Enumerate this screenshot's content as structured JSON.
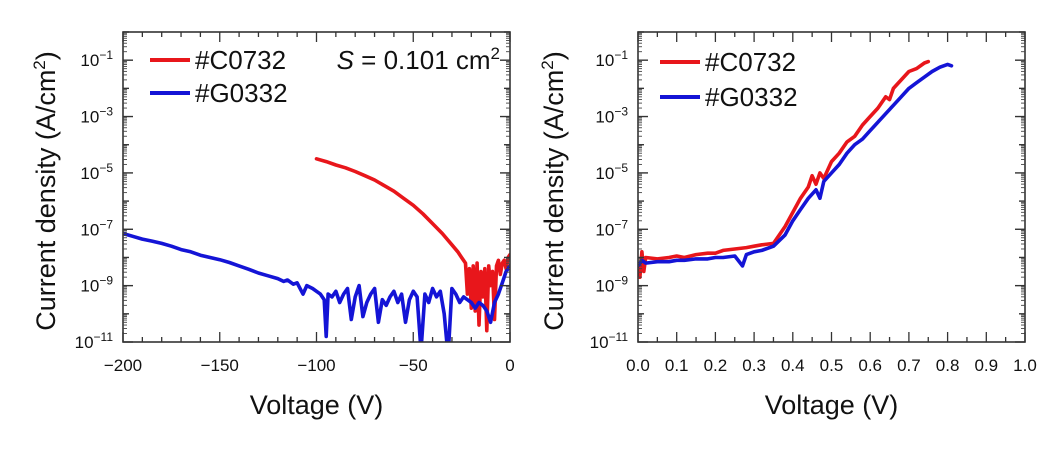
{
  "chart_data": [
    {
      "type": "line",
      "panel": "left",
      "title": "",
      "xlabel": "Voltage (V)",
      "ylabel": "Current density (A/cm2)",
      "yscale": "log",
      "xlim": [
        -200,
        0
      ],
      "ylim_exp": [
        -11,
        0
      ],
      "x_ticks": [
        -200,
        -150,
        -100,
        -50,
        0
      ],
      "x_tick_labels": [
        "−200",
        "−150",
        "−100",
        "−50",
        "0"
      ],
      "y_tick_exps": [
        -1,
        -3,
        -5,
        -7,
        -9,
        -11
      ],
      "annotation": {
        "italic": "S",
        "text": " = 0.101 cm",
        "sup": "2"
      },
      "legend_position": "top-left",
      "series": [
        {
          "name": "#C0732",
          "color": "#e8161b",
          "x": [
            -100,
            -95,
            -90,
            -85,
            -80,
            -75,
            -70,
            -65,
            -60,
            -55,
            -50,
            -45,
            -40,
            -35,
            -30,
            -27,
            -25,
            -23,
            -22,
            -21,
            -20,
            -19,
            -18,
            -17,
            -16,
            -15,
            -14,
            -13,
            -12,
            -11,
            -10,
            -9,
            -8,
            -7,
            -6,
            -5,
            -4,
            -3,
            -2,
            -1,
            0
          ],
          "log10_y": [
            -4.5,
            -4.6,
            -4.72,
            -4.82,
            -4.95,
            -5.1,
            -5.25,
            -5.45,
            -5.65,
            -5.9,
            -6.15,
            -6.45,
            -6.8,
            -7.15,
            -7.55,
            -7.8,
            -8.0,
            -8.2,
            -9.3,
            -8.4,
            -9.8,
            -8.3,
            -9.9,
            -8.2,
            -10.4,
            -8.5,
            -9.4,
            -8.4,
            -10.6,
            -8.3,
            -9.0,
            -8.5,
            -10.2,
            -8.3,
            -8.1,
            -8.6,
            -8.2,
            -8.1,
            -8.4,
            -8.0,
            -7.9
          ]
        },
        {
          "name": "#G0332",
          "color": "#1414d6",
          "x": [
            -200,
            -195,
            -190,
            -185,
            -180,
            -175,
            -170,
            -165,
            -160,
            -155,
            -150,
            -145,
            -140,
            -135,
            -130,
            -125,
            -120,
            -117,
            -115,
            -112,
            -110,
            -107,
            -105,
            -102,
            -100,
            -98,
            -96,
            -95,
            -94,
            -92,
            -90,
            -88,
            -86,
            -84,
            -82,
            -80,
            -78,
            -76,
            -74,
            -72,
            -70,
            -68,
            -66,
            -64,
            -62,
            -60,
            -58,
            -56,
            -54,
            -52,
            -50,
            -48,
            -46,
            -44,
            -42,
            -40,
            -38,
            -36,
            -34,
            -32,
            -30,
            -28,
            -26,
            -24,
            -22,
            -20,
            -18,
            -16,
            -14,
            -12,
            -10,
            -8,
            -6,
            -4,
            -2,
            0
          ],
          "log10_y": [
            -7.15,
            -7.25,
            -7.35,
            -7.42,
            -7.5,
            -7.6,
            -7.72,
            -7.8,
            -7.92,
            -8.0,
            -8.08,
            -8.18,
            -8.3,
            -8.42,
            -8.55,
            -8.65,
            -8.75,
            -8.85,
            -8.8,
            -8.95,
            -8.9,
            -9.3,
            -9.0,
            -9.1,
            -9.2,
            -9.3,
            -9.5,
            -10.8,
            -9.3,
            -9.4,
            -9.2,
            -9.6,
            -9.3,
            -9.1,
            -10.2,
            -9.4,
            -9.0,
            -10.1,
            -9.6,
            -9.3,
            -9.1,
            -10.3,
            -9.5,
            -9.7,
            -9.4,
            -9.2,
            -9.6,
            -9.3,
            -10.3,
            -9.5,
            -9.2,
            -9.4,
            -11.3,
            -9.3,
            -9.6,
            -9.1,
            -9.4,
            -9.2,
            -10.0,
            -11.5,
            -9.1,
            -9.3,
            -9.6,
            -9.4,
            -9.5,
            -9.6,
            -9.8,
            -9.6,
            -9.7,
            -9.9,
            -10.3,
            -9.6,
            -9.3,
            -8.9,
            -8.5,
            -8.3
          ]
        }
      ]
    },
    {
      "type": "line",
      "panel": "right",
      "title": "",
      "xlabel": "Voltage (V)",
      "ylabel": "Current density (A/cm2)",
      "yscale": "log",
      "xlim": [
        0.0,
        1.0
      ],
      "ylim_exp": [
        -11,
        0
      ],
      "x_ticks": [
        0.0,
        0.1,
        0.2,
        0.3,
        0.4,
        0.5,
        0.6,
        0.7,
        0.8,
        0.9,
        1.0
      ],
      "x_tick_labels": [
        "0.0",
        "0.1",
        "0.2",
        "0.3",
        "0.4",
        "0.5",
        "0.6",
        "0.7",
        "0.8",
        "0.9",
        "1.0"
      ],
      "y_tick_exps": [
        -1,
        -3,
        -5,
        -7,
        -9,
        -11
      ],
      "legend_position": "top-left",
      "series": [
        {
          "name": "#C0732",
          "color": "#e8161b",
          "x": [
            0.0,
            0.005,
            0.01,
            0.015,
            0.02,
            0.05,
            0.08,
            0.1,
            0.12,
            0.15,
            0.18,
            0.2,
            0.22,
            0.25,
            0.28,
            0.3,
            0.32,
            0.35,
            0.38,
            0.4,
            0.42,
            0.44,
            0.45,
            0.46,
            0.47,
            0.48,
            0.5,
            0.52,
            0.54,
            0.56,
            0.58,
            0.6,
            0.62,
            0.64,
            0.65,
            0.66,
            0.68,
            0.7,
            0.72,
            0.74,
            0.75
          ],
          "log10_y": [
            -8.2,
            -8.7,
            -7.8,
            -8.5,
            -8.0,
            -8.05,
            -8.0,
            -7.95,
            -8.0,
            -7.9,
            -7.85,
            -7.85,
            -7.75,
            -7.7,
            -7.65,
            -7.6,
            -7.55,
            -7.5,
            -6.9,
            -6.4,
            -5.9,
            -5.5,
            -5.1,
            -5.4,
            -5.0,
            -5.2,
            -4.6,
            -4.3,
            -3.9,
            -3.7,
            -3.3,
            -3.0,
            -2.7,
            -2.3,
            -2.4,
            -2.0,
            -1.7,
            -1.4,
            -1.3,
            -1.1,
            -1.05
          ]
        },
        {
          "name": "#G0332",
          "color": "#1414d6",
          "x": [
            0.0,
            0.01,
            0.02,
            0.05,
            0.08,
            0.1,
            0.12,
            0.15,
            0.18,
            0.2,
            0.22,
            0.25,
            0.27,
            0.28,
            0.3,
            0.32,
            0.35,
            0.38,
            0.4,
            0.42,
            0.44,
            0.46,
            0.47,
            0.48,
            0.5,
            0.52,
            0.54,
            0.56,
            0.58,
            0.6,
            0.62,
            0.64,
            0.66,
            0.68,
            0.7,
            0.72,
            0.74,
            0.76,
            0.78,
            0.8,
            0.81
          ],
          "log10_y": [
            -8.3,
            -8.1,
            -8.2,
            -8.15,
            -8.15,
            -8.1,
            -8.1,
            -8.05,
            -8.05,
            -8.0,
            -8.0,
            -7.95,
            -8.3,
            -7.9,
            -7.8,
            -7.75,
            -7.6,
            -7.2,
            -6.7,
            -6.3,
            -5.9,
            -5.6,
            -5.9,
            -5.3,
            -5.0,
            -4.7,
            -4.3,
            -4.0,
            -3.8,
            -3.5,
            -3.2,
            -2.9,
            -2.6,
            -2.3,
            -2.0,
            -1.8,
            -1.6,
            -1.4,
            -1.25,
            -1.15,
            -1.2
          ]
        }
      ]
    }
  ]
}
